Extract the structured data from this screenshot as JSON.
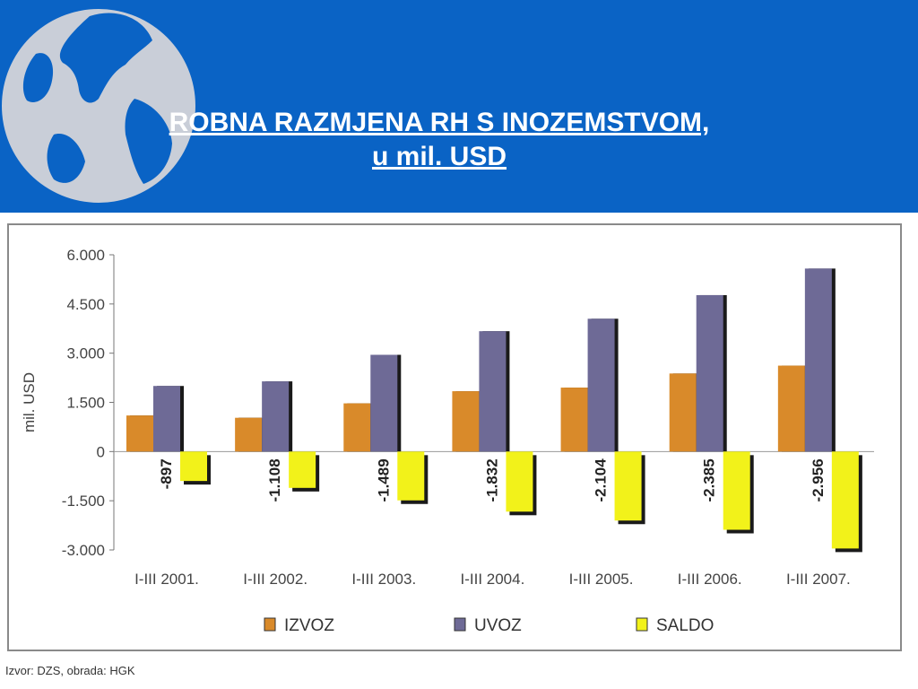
{
  "slide": {
    "title_line1": "ROBNA RAZMJENA RH S INOZEMSTVOM,",
    "title_line2": "u mil. USD",
    "source": "Izvor: DZS, obrada: HGK"
  },
  "colors": {
    "header": "#0a63c5",
    "izvoz": "#d98a2a",
    "uvoz": "#6e6a96",
    "saldo": "#f2f21a"
  },
  "icons": {
    "globe": "globe-icon"
  },
  "chart_data": {
    "type": "bar",
    "title": "",
    "xlabel": "",
    "ylabel": "mil. USD",
    "ylim": [
      -3000,
      6000
    ],
    "yticks": [
      6000,
      4500,
      3000,
      1500,
      0,
      -1500,
      -3000
    ],
    "ytick_labels": [
      "6.000",
      "4.500",
      "3.000",
      "1.500",
      "0",
      "-1.500",
      "-3.000"
    ],
    "categories": [
      "I-III 2001.",
      "I-III 2002.",
      "I-III 2003.",
      "I-III 2004.",
      "I-III 2005.",
      "I-III 2006.",
      "I-III 2007."
    ],
    "series": [
      {
        "name": "IZVOZ",
        "values": [
          1100,
          1030,
          1470,
          1840,
          1950,
          2380,
          2620
        ]
      },
      {
        "name": "UVOZ",
        "values": [
          2000,
          2140,
          2950,
          3670,
          4050,
          4770,
          5580
        ]
      },
      {
        "name": "SALDO",
        "values": [
          -897,
          -1108,
          -1489,
          -1832,
          -2104,
          -2385,
          -2956
        ],
        "labels": [
          "-897",
          "-1.108",
          "-1.489",
          "-1.832",
          "-2.104",
          "-2.385",
          "-2.956"
        ]
      }
    ],
    "legend_position": "bottom",
    "grid": false
  }
}
